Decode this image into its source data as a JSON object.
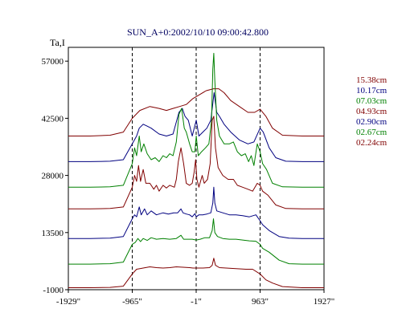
{
  "chart_data": {
    "type": "line",
    "title": "SUN_A+0:2002/10/10 09:00:42.800",
    "ylabel": "Ta,I",
    "xlabel": "",
    "x_tick_labels": [
      "-1929\"",
      "-965\"",
      "-1\"",
      "963\"",
      "1927\""
    ],
    "x_ticks": [
      -1929,
      -965,
      -1,
      963,
      1927
    ],
    "xlim": [
      -1929,
      1927
    ],
    "y_ticks": [
      -1000,
      13500,
      28000,
      42500,
      57000
    ],
    "y_tick_labels": [
      "-1000",
      "13500",
      "28000",
      "42500",
      "57000"
    ],
    "ylim": [
      -1000,
      60500
    ],
    "vertical_dashed_lines": [
      -965,
      -1,
      963
    ],
    "grid": false,
    "legend_position": "right",
    "colors": {
      "red": "#800000",
      "blue": "#000080",
      "green": "#008000",
      "axis": "#000000",
      "title": "#000060"
    },
    "series": [
      {
        "name": "15.38cm",
        "color": "#800000",
        "points": [
          [
            -1929,
            38000
          ],
          [
            -1600,
            38000
          ],
          [
            -1300,
            38200
          ],
          [
            -1100,
            39000
          ],
          [
            -965,
            42500
          ],
          [
            -850,
            44500
          ],
          [
            -700,
            45500
          ],
          [
            -560,
            45000
          ],
          [
            -450,
            44500
          ],
          [
            -350,
            45000
          ],
          [
            -250,
            45500
          ],
          [
            -150,
            46000
          ],
          [
            -50,
            47500
          ],
          [
            50,
            48500
          ],
          [
            150,
            49500
          ],
          [
            260,
            50000
          ],
          [
            340,
            50000
          ],
          [
            420,
            49000
          ],
          [
            520,
            47000
          ],
          [
            650,
            45500
          ],
          [
            780,
            44000
          ],
          [
            880,
            44000
          ],
          [
            963,
            44800
          ],
          [
            1050,
            43000
          ],
          [
            1150,
            40000
          ],
          [
            1300,
            38200
          ],
          [
            1600,
            38000
          ],
          [
            1927,
            38000
          ]
        ]
      },
      {
        "name": "10.17cm",
        "color": "#000080",
        "points": [
          [
            -1929,
            31500
          ],
          [
            -1600,
            31500
          ],
          [
            -1300,
            31600
          ],
          [
            -1100,
            32000
          ],
          [
            -965,
            36000
          ],
          [
            -900,
            38000
          ],
          [
            -860,
            40000
          ],
          [
            -800,
            41000
          ],
          [
            -740,
            40500
          ],
          [
            -680,
            40000
          ],
          [
            -560,
            38500
          ],
          [
            -450,
            38000
          ],
          [
            -350,
            38500
          ],
          [
            -260,
            44000
          ],
          [
            -210,
            45000
          ],
          [
            -170,
            43000
          ],
          [
            -120,
            42000
          ],
          [
            -60,
            38000
          ],
          [
            0,
            42000
          ],
          [
            40,
            38000
          ],
          [
            100,
            39000
          ],
          [
            160,
            40000
          ],
          [
            220,
            42000
          ],
          [
            270,
            49000
          ],
          [
            310,
            44000
          ],
          [
            350,
            43000
          ],
          [
            420,
            41000
          ],
          [
            520,
            39000
          ],
          [
            650,
            37000
          ],
          [
            780,
            36000
          ],
          [
            870,
            36500
          ],
          [
            963,
            40000
          ],
          [
            1010,
            39000
          ],
          [
            1100,
            35000
          ],
          [
            1200,
            32500
          ],
          [
            1350,
            31600
          ],
          [
            1600,
            31500
          ],
          [
            1927,
            31500
          ]
        ]
      },
      {
        "name": "07.03cm",
        "color": "#008000",
        "points": [
          [
            -1929,
            25000
          ],
          [
            -1600,
            25000
          ],
          [
            -1300,
            25100
          ],
          [
            -1100,
            25500
          ],
          [
            -965,
            31000
          ],
          [
            -930,
            35000
          ],
          [
            -900,
            33000
          ],
          [
            -860,
            38000
          ],
          [
            -830,
            34000
          ],
          [
            -790,
            36000
          ],
          [
            -740,
            33500
          ],
          [
            -680,
            32000
          ],
          [
            -620,
            32500
          ],
          [
            -560,
            31500
          ],
          [
            -500,
            33000
          ],
          [
            -450,
            32500
          ],
          [
            -400,
            33500
          ],
          [
            -350,
            33000
          ],
          [
            -300,
            36500
          ],
          [
            -260,
            43500
          ],
          [
            -220,
            45000
          ],
          [
            -180,
            40000
          ],
          [
            -150,
            39000
          ],
          [
            -100,
            36000
          ],
          [
            -60,
            34000
          ],
          [
            -20,
            34000
          ],
          [
            0,
            38000
          ],
          [
            30,
            33000
          ],
          [
            80,
            34000
          ],
          [
            140,
            35000
          ],
          [
            190,
            36000
          ],
          [
            230,
            42000
          ],
          [
            250,
            55000
          ],
          [
            265,
            59000
          ],
          [
            280,
            52000
          ],
          [
            310,
            42000
          ],
          [
            350,
            38000
          ],
          [
            420,
            36000
          ],
          [
            500,
            36000
          ],
          [
            560,
            36500
          ],
          [
            620,
            34000
          ],
          [
            680,
            33000
          ],
          [
            740,
            33500
          ],
          [
            790,
            31500
          ],
          [
            830,
            33000
          ],
          [
            870,
            30500
          ],
          [
            920,
            36000
          ],
          [
            963,
            34000
          ],
          [
            1000,
            31000
          ],
          [
            1060,
            29500
          ],
          [
            1150,
            26000
          ],
          [
            1300,
            25100
          ],
          [
            1600,
            25000
          ],
          [
            1927,
            25000
          ]
        ]
      },
      {
        "name": "04.93cm",
        "color": "#800000",
        "points": [
          [
            -1929,
            19500
          ],
          [
            -1600,
            19500
          ],
          [
            -1300,
            19600
          ],
          [
            -1100,
            20000
          ],
          [
            -965,
            25000
          ],
          [
            -930,
            28000
          ],
          [
            -900,
            26500
          ],
          [
            -870,
            30500
          ],
          [
            -840,
            26500
          ],
          [
            -800,
            29500
          ],
          [
            -760,
            26000
          ],
          [
            -700,
            26000
          ],
          [
            -640,
            24500
          ],
          [
            -600,
            25500
          ],
          [
            -560,
            24000
          ],
          [
            -500,
            25500
          ],
          [
            -450,
            24800
          ],
          [
            -400,
            25500
          ],
          [
            -330,
            25000
          ],
          [
            -300,
            27000
          ],
          [
            -270,
            31500
          ],
          [
            -230,
            35000
          ],
          [
            -190,
            31000
          ],
          [
            -150,
            26000
          ],
          [
            -100,
            25500
          ],
          [
            -60,
            26000
          ],
          [
            -30,
            29000
          ],
          [
            -10,
            32000
          ],
          [
            10,
            27000
          ],
          [
            40,
            25000
          ],
          [
            90,
            28000
          ],
          [
            120,
            26000
          ],
          [
            170,
            27000
          ],
          [
            210,
            31000
          ],
          [
            240,
            42000
          ],
          [
            265,
            43000
          ],
          [
            290,
            35000
          ],
          [
            330,
            30000
          ],
          [
            400,
            28000
          ],
          [
            480,
            27000
          ],
          [
            560,
            27000
          ],
          [
            620,
            25500
          ],
          [
            700,
            25000
          ],
          [
            780,
            24500
          ],
          [
            850,
            24000
          ],
          [
            920,
            26000
          ],
          [
            963,
            25500
          ],
          [
            1000,
            24000
          ],
          [
            1080,
            23000
          ],
          [
            1200,
            20500
          ],
          [
            1350,
            19600
          ],
          [
            1600,
            19500
          ],
          [
            1927,
            19500
          ]
        ]
      },
      {
        "name": "02.90cm",
        "color": "#000080",
        "points": [
          [
            -1929,
            12000
          ],
          [
            -1600,
            12000
          ],
          [
            -1300,
            12100
          ],
          [
            -1100,
            12500
          ],
          [
            -965,
            17000
          ],
          [
            -930,
            18000
          ],
          [
            -900,
            17500
          ],
          [
            -860,
            20000
          ],
          [
            -830,
            18000
          ],
          [
            -780,
            19500
          ],
          [
            -740,
            18000
          ],
          [
            -680,
            19000
          ],
          [
            -600,
            18000
          ],
          [
            -500,
            18500
          ],
          [
            -420,
            18200
          ],
          [
            -340,
            18500
          ],
          [
            -280,
            18500
          ],
          [
            -230,
            19500
          ],
          [
            -200,
            18500
          ],
          [
            -150,
            18200
          ],
          [
            -100,
            18000
          ],
          [
            -60,
            17500
          ],
          [
            -20,
            18300
          ],
          [
            0,
            17500
          ],
          [
            40,
            18000
          ],
          [
            100,
            18000
          ],
          [
            160,
            18200
          ],
          [
            220,
            18500
          ],
          [
            250,
            21000
          ],
          [
            265,
            25000
          ],
          [
            280,
            21000
          ],
          [
            310,
            19000
          ],
          [
            400,
            18500
          ],
          [
            500,
            18000
          ],
          [
            600,
            18000
          ],
          [
            700,
            17800
          ],
          [
            800,
            17500
          ],
          [
            900,
            18000
          ],
          [
            963,
            16500
          ],
          [
            1000,
            15500
          ],
          [
            1100,
            14000
          ],
          [
            1250,
            12500
          ],
          [
            1400,
            12100
          ],
          [
            1600,
            12000
          ],
          [
            1927,
            12000
          ]
        ]
      },
      {
        "name": "02.67cm",
        "color": "#008000",
        "points": [
          [
            -1929,
            5500
          ],
          [
            -1600,
            5500
          ],
          [
            -1300,
            5600
          ],
          [
            -1100,
            6000
          ],
          [
            -965,
            10500
          ],
          [
            -920,
            11000
          ],
          [
            -880,
            12000
          ],
          [
            -840,
            11200
          ],
          [
            -800,
            12000
          ],
          [
            -740,
            11500
          ],
          [
            -680,
            12200
          ],
          [
            -600,
            11800
          ],
          [
            -500,
            12000
          ],
          [
            -400,
            11800
          ],
          [
            -300,
            12000
          ],
          [
            -230,
            12800
          ],
          [
            -190,
            11800
          ],
          [
            -120,
            11800
          ],
          [
            -60,
            11800
          ],
          [
            0,
            11600
          ],
          [
            60,
            11800
          ],
          [
            130,
            12200
          ],
          [
            200,
            12200
          ],
          [
            240,
            14000
          ],
          [
            260,
            17000
          ],
          [
            280,
            13500
          ],
          [
            320,
            12500
          ],
          [
            400,
            12000
          ],
          [
            500,
            11800
          ],
          [
            600,
            11800
          ],
          [
            700,
            11600
          ],
          [
            800,
            11400
          ],
          [
            900,
            11300
          ],
          [
            963,
            10500
          ],
          [
            1000,
            9500
          ],
          [
            1100,
            8500
          ],
          [
            1250,
            6500
          ],
          [
            1400,
            5600
          ],
          [
            1600,
            5500
          ],
          [
            1927,
            5500
          ]
        ]
      },
      {
        "name": "02.24cm",
        "color": "#800000",
        "points": [
          [
            -1929,
            -500
          ],
          [
            -1600,
            -500
          ],
          [
            -1300,
            -400
          ],
          [
            -1100,
            -100
          ],
          [
            -965,
            3000
          ],
          [
            -900,
            4200
          ],
          [
            -800,
            4500
          ],
          [
            -700,
            4800
          ],
          [
            -600,
            4600
          ],
          [
            -500,
            4500
          ],
          [
            -400,
            4600
          ],
          [
            -300,
            4800
          ],
          [
            -200,
            4700
          ],
          [
            -100,
            4600
          ],
          [
            -50,
            4500
          ],
          [
            0,
            4500
          ],
          [
            100,
            4500
          ],
          [
            200,
            4600
          ],
          [
            240,
            5200
          ],
          [
            265,
            7000
          ],
          [
            290,
            5200
          ],
          [
            350,
            4600
          ],
          [
            450,
            4500
          ],
          [
            550,
            4400
          ],
          [
            650,
            4300
          ],
          [
            750,
            4200
          ],
          [
            850,
            4200
          ],
          [
            963,
            3000
          ],
          [
            1050,
            1500
          ],
          [
            1150,
            700
          ],
          [
            1300,
            -200
          ],
          [
            1600,
            -500
          ],
          [
            1927,
            -500
          ]
        ]
      }
    ]
  }
}
